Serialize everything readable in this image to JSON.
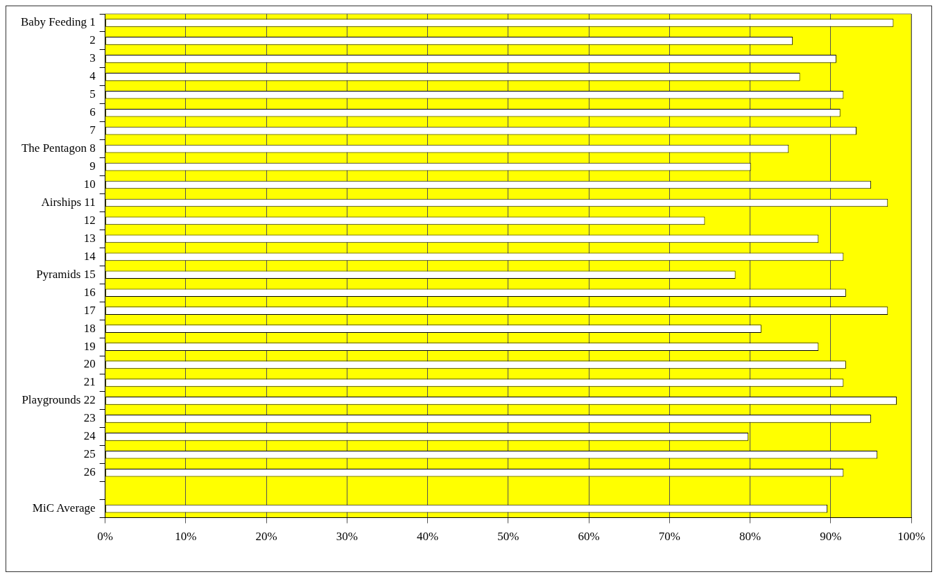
{
  "chart_data": {
    "type": "bar",
    "orientation": "horizontal",
    "categories": [
      "Baby Feeding 1",
      "2",
      "3",
      "4",
      "5",
      "6",
      "7",
      "The Pentagon 8",
      "9",
      "10",
      "Airships 11",
      "12",
      "13",
      "14",
      "Pyramids 15",
      "16",
      "17",
      "18",
      "19",
      "20",
      "21",
      "Playgrounds 22",
      "23",
      "24",
      "25",
      "26",
      null,
      "MiC Average"
    ],
    "values": [
      97.8,
      85.3,
      90.7,
      86.2,
      91.6,
      91.2,
      93.2,
      84.8,
      80.1,
      95.0,
      97.1,
      74.4,
      88.5,
      91.6,
      78.2,
      91.9,
      97.1,
      81.4,
      88.5,
      91.9,
      91.6,
      98.2,
      95.0,
      79.8,
      95.8,
      91.6,
      null,
      89.6
    ],
    "color": "#ffffff",
    "xlim": [
      0,
      100
    ],
    "xticks": [
      {
        "value": 0,
        "label": "0%"
      },
      {
        "value": 10,
        "label": "10%"
      },
      {
        "value": 20,
        "label": "20%"
      },
      {
        "value": 30,
        "label": "30%"
      },
      {
        "value": 40,
        "label": "40%"
      },
      {
        "value": 50,
        "label": "50%"
      },
      {
        "value": 60,
        "label": "60%"
      },
      {
        "value": 70,
        "label": "70%"
      },
      {
        "value": 80,
        "label": "80%"
      },
      {
        "value": 90,
        "label": "90%"
      },
      {
        "value": 100,
        "label": "100%"
      }
    ],
    "grid": "x",
    "legend": false
  }
}
